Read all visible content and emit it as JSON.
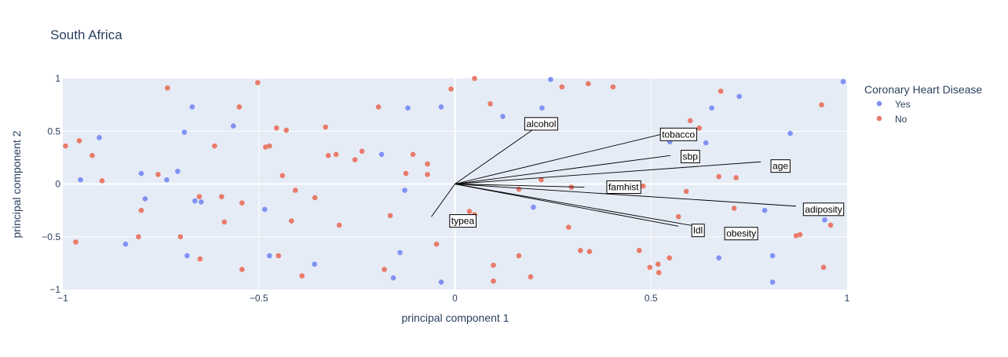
{
  "chart_data": {
    "type": "scatter",
    "title": "South Africa",
    "xlabel": "principal component 1",
    "ylabel": "principal component 2",
    "xlim": [
      -1,
      1
    ],
    "ylim": [
      -1,
      1
    ],
    "x_ticks": [
      -1,
      -0.5,
      0,
      0.5,
      1
    ],
    "x_tick_labels": [
      "−1",
      "−0.5",
      "0",
      "0.5",
      "1"
    ],
    "y_ticks": [
      -1,
      -0.5,
      0,
      0.5,
      1
    ],
    "y_tick_labels": [
      "−1",
      "−0.5",
      "0",
      "0.5",
      "1"
    ],
    "grid": true,
    "legend": {
      "title": "Coronary Heart Disease",
      "placement": "right",
      "entries": [
        {
          "name": "Yes",
          "color": "#8192f4"
        },
        {
          "name": "No",
          "color": "#e97b6a"
        }
      ]
    },
    "colors": {
      "plot_bg": "#e5ecf6",
      "grid": "#ffffff",
      "text": "#2a3f5f",
      "yes": "#8192f4",
      "no": "#e97b6a",
      "loading_line": "#000000"
    },
    "series": [
      {
        "name": "Yes",
        "points": [
          [
            -0.955,
            0.04
          ],
          [
            -0.907,
            0.44
          ],
          [
            -0.84,
            -0.57
          ],
          [
            -0.8,
            0.1
          ],
          [
            -0.79,
            -0.14
          ],
          [
            -0.735,
            0.04
          ],
          [
            -0.707,
            0.12
          ],
          [
            -0.69,
            0.49
          ],
          [
            -0.683,
            -0.68
          ],
          [
            -0.67,
            0.73
          ],
          [
            -0.663,
            -0.16
          ],
          [
            -0.647,
            -0.17
          ],
          [
            -0.565,
            0.55
          ],
          [
            -0.485,
            -0.24
          ],
          [
            -0.473,
            -0.68
          ],
          [
            -0.358,
            -0.76
          ],
          [
            -0.187,
            0.28
          ],
          [
            -0.157,
            -0.89
          ],
          [
            -0.14,
            -0.65
          ],
          [
            -0.128,
            -0.06
          ],
          [
            -0.12,
            0.72
          ],
          [
            -0.035,
            0.73
          ],
          [
            -0.035,
            -0.93
          ],
          [
            0.122,
            0.64
          ],
          [
            0.2,
            -0.22
          ],
          [
            0.222,
            0.72
          ],
          [
            0.244,
            0.99
          ],
          [
            0.548,
            0.4
          ],
          [
            0.64,
            0.39
          ],
          [
            0.655,
            0.72
          ],
          [
            0.673,
            -0.7
          ],
          [
            0.725,
            0.83
          ],
          [
            0.79,
            -0.25
          ],
          [
            0.855,
            0.48
          ],
          [
            0.81,
            -0.68
          ],
          [
            0.81,
            -0.93
          ],
          [
            0.943,
            -0.34
          ],
          [
            0.99,
            0.97
          ]
        ]
      },
      {
        "name": "No",
        "points": [
          [
            -0.993,
            0.36
          ],
          [
            -0.967,
            -0.55
          ],
          [
            -0.958,
            0.41
          ],
          [
            -0.925,
            0.27
          ],
          [
            -0.9,
            0.03
          ],
          [
            -0.807,
            -0.5
          ],
          [
            -0.8,
            -0.25
          ],
          [
            -0.757,
            0.09
          ],
          [
            -0.733,
            0.91
          ],
          [
            -0.7,
            -0.5
          ],
          [
            -0.652,
            -0.12
          ],
          [
            -0.65,
            -0.71
          ],
          [
            -0.613,
            0.36
          ],
          [
            -0.595,
            -0.12
          ],
          [
            -0.588,
            -0.36
          ],
          [
            -0.55,
            0.73
          ],
          [
            -0.543,
            -0.18
          ],
          [
            -0.543,
            -0.81
          ],
          [
            -0.503,
            0.96
          ],
          [
            -0.483,
            0.35
          ],
          [
            -0.473,
            0.36
          ],
          [
            -0.455,
            0.53
          ],
          [
            -0.45,
            -0.68
          ],
          [
            -0.44,
            0.08
          ],
          [
            -0.43,
            0.51
          ],
          [
            -0.417,
            -0.35
          ],
          [
            -0.407,
            -0.06
          ],
          [
            -0.39,
            -0.87
          ],
          [
            -0.357,
            -0.13
          ],
          [
            -0.33,
            0.54
          ],
          [
            -0.323,
            0.27
          ],
          [
            -0.303,
            0.28
          ],
          [
            -0.295,
            -0.39
          ],
          [
            -0.255,
            0.23
          ],
          [
            -0.237,
            0.31
          ],
          [
            -0.195,
            0.73
          ],
          [
            -0.18,
            -0.81
          ],
          [
            -0.165,
            -0.3
          ],
          [
            -0.125,
            0.1
          ],
          [
            -0.107,
            0.28
          ],
          [
            -0.07,
            0.09
          ],
          [
            -0.07,
            0.19
          ],
          [
            -0.047,
            -0.57
          ],
          [
            -0.01,
            0.9
          ],
          [
            0.037,
            -0.26
          ],
          [
            0.05,
            -0.29
          ],
          [
            0.05,
            1
          ],
          [
            0.09,
            0.76
          ],
          [
            0.098,
            -0.77
          ],
          [
            0.098,
            -0.92
          ],
          [
            0.163,
            -0.05
          ],
          [
            0.163,
            -0.68
          ],
          [
            0.193,
            -0.88
          ],
          [
            0.22,
            0.04
          ],
          [
            0.273,
            0.92
          ],
          [
            0.29,
            -0.41
          ],
          [
            0.297,
            -0.03
          ],
          [
            0.32,
            -0.63
          ],
          [
            0.34,
            0.95
          ],
          [
            0.343,
            -0.64
          ],
          [
            0.403,
            0.92
          ],
          [
            0.47,
            -0.63
          ],
          [
            0.48,
            -0.02
          ],
          [
            0.497,
            -0.79
          ],
          [
            0.518,
            -0.76
          ],
          [
            0.52,
            -0.84
          ],
          [
            0.547,
            -0.7
          ],
          [
            0.57,
            -0.31
          ],
          [
            0.59,
            -0.07
          ],
          [
            0.6,
            0.6
          ],
          [
            0.623,
            0.53
          ],
          [
            0.673,
            0.07
          ],
          [
            0.678,
            0.88
          ],
          [
            0.712,
            -0.23
          ],
          [
            0.717,
            0.06
          ],
          [
            0.87,
            -0.49
          ],
          [
            0.88,
            -0.48
          ],
          [
            0.935,
            0.75
          ],
          [
            0.94,
            -0.79
          ],
          [
            0.958,
            -0.39
          ]
        ]
      }
    ],
    "loadings": [
      {
        "name": "alcohol",
        "x": 0.22,
        "y": 0.57
      },
      {
        "name": "tobacco",
        "x": 0.57,
        "y": 0.47
      },
      {
        "name": "sbp",
        "x": 0.6,
        "y": 0.26
      },
      {
        "name": "age",
        "x": 0.83,
        "y": 0.17
      },
      {
        "name": "famhist",
        "x": 0.43,
        "y": -0.03
      },
      {
        "name": "typea",
        "x": 0.02,
        "y": -0.35
      },
      {
        "name": "adiposity",
        "x": 0.94,
        "y": -0.24
      },
      {
        "name": "ldl",
        "x": 0.62,
        "y": -0.44
      },
      {
        "name": "obesity",
        "x": 0.73,
        "y": -0.47
      }
    ],
    "loading_line_ends": [
      {
        "name": "alcohol",
        "x": 0.22,
        "y": 0.57
      },
      {
        "name": "tobacco",
        "x": 0.57,
        "y": 0.51
      },
      {
        "name": "sbp",
        "x": 0.55,
        "y": 0.27
      },
      {
        "name": "age",
        "x": 0.78,
        "y": 0.21
      },
      {
        "name": "famhist",
        "x": 0.33,
        "y": -0.03
      },
      {
        "name": "typea",
        "x": -0.06,
        "y": -0.31
      },
      {
        "name": "adiposity",
        "x": 0.87,
        "y": -0.21
      },
      {
        "name": "ldl",
        "x": 0.57,
        "y": -0.4
      },
      {
        "name": "obesity",
        "x": 0.63,
        "y": -0.41
      }
    ]
  }
}
